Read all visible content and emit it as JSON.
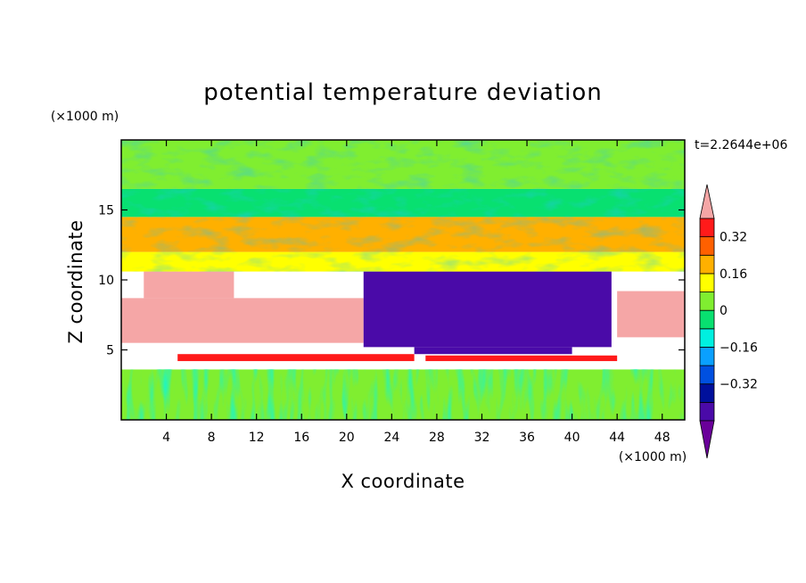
{
  "chart_data": {
    "type": "heatmap",
    "title": "potential temperature deviation",
    "xlabel": "X coordinate",
    "ylabel": "Z coordinate",
    "x_unit": "(×1000 m)",
    "y_unit": "(×1000 m)",
    "time_label": "t=2.2644e+06",
    "xlim": [
      0,
      50
    ],
    "ylim": [
      0,
      20
    ],
    "x_ticks": [
      4,
      8,
      12,
      16,
      20,
      24,
      28,
      32,
      36,
      40,
      44,
      48
    ],
    "y_ticks": [
      5,
      10,
      15
    ],
    "colorbar": {
      "levels": [
        -0.48,
        -0.4,
        -0.32,
        -0.24,
        -0.16,
        -0.08,
        0,
        0.08,
        0.16,
        0.24,
        0.32,
        0.4
      ],
      "labels": [
        "0.32",
        "0.16",
        "0",
        "−0.16",
        "−0.32"
      ],
      "label_values": [
        0.32,
        0.16,
        0,
        -0.16,
        -0.32
      ],
      "colors": [
        "#6a009a",
        "#4a0aa8",
        "#00109c",
        "#0050e0",
        "#0aa0ff",
        "#00f0e0",
        "#08e070",
        "#80ee30",
        "#ffff00",
        "#ffb000",
        "#ff6000",
        "#ff1a1a",
        "#f5a6a6"
      ],
      "extend": "both"
    },
    "regions": [
      {
        "name": "surface layer",
        "x": [
          0,
          50
        ],
        "z": [
          0,
          3.6
        ],
        "value": 0.03
      },
      {
        "name": "inversion strip",
        "x": [
          5,
          26
        ],
        "z": [
          4.2,
          4.7
        ],
        "value": 0.36
      },
      {
        "name": "inversion strip right",
        "x": [
          27,
          44
        ],
        "z": [
          4.2,
          4.6
        ],
        "value": 0.34
      },
      {
        "name": "warm layer left upper",
        "x": [
          2,
          10
        ],
        "z": [
          8.7,
          10.6
        ],
        "value": 0.45
      },
      {
        "name": "warm layer left",
        "x": [
          0,
          21.5
        ],
        "z": [
          5.5,
          8.7
        ],
        "value": 0.45
      },
      {
        "name": "warm layer right",
        "x": [
          44,
          50
        ],
        "z": [
          5.9,
          9.2
        ],
        "value": 0.45
      },
      {
        "name": "cold pool",
        "x": [
          21.5,
          43.5
        ],
        "z": [
          5.2,
          10.6
        ],
        "value": -0.45
      },
      {
        "name": "cold pool lower",
        "x": [
          26,
          40
        ],
        "z": [
          4.7,
          5.2
        ],
        "value": -0.45
      },
      {
        "name": "upper band 1",
        "x": [
          0,
          50
        ],
        "z": [
          10.6,
          12.0
        ],
        "value": 0.12
      },
      {
        "name": "upper band 2",
        "x": [
          0,
          50
        ],
        "z": [
          12.0,
          14.5
        ],
        "value": 0.18
      },
      {
        "name": "upper band 3",
        "x": [
          0,
          50
        ],
        "z": [
          14.5,
          16.5
        ],
        "value": -0.06
      },
      {
        "name": "top layer",
        "x": [
          0,
          50
        ],
        "z": [
          16.5,
          20
        ],
        "value": 0.06
      }
    ]
  }
}
